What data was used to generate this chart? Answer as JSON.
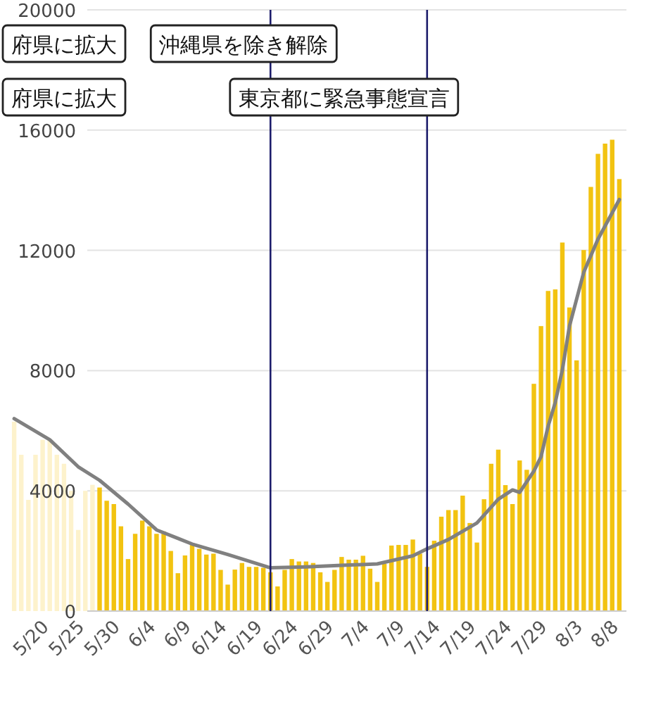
{
  "chart_data": {
    "type": "bar",
    "x": [
      "--05-15",
      "--05-16",
      "--05-17",
      "--05-18",
      "--05-19",
      "--05-20",
      "--05-21",
      "--05-22",
      "--05-23",
      "--05-24",
      "--05-25",
      "--05-26",
      "--05-27",
      "--05-28",
      "--05-29",
      "--05-30",
      "--05-31",
      "--06-01",
      "--06-02",
      "--06-03",
      "--06-04",
      "--06-05",
      "--06-06",
      "--06-07",
      "--06-08",
      "--06-09",
      "--06-10",
      "--06-11",
      "--06-12",
      "--06-13",
      "--06-14",
      "--06-15",
      "--06-16",
      "--06-17",
      "--06-18",
      "--06-19",
      "--06-20",
      "--06-21",
      "--06-22",
      "--06-23",
      "--06-24",
      "--06-25",
      "--06-26",
      "--06-27",
      "--06-28",
      "--06-29",
      "--06-30",
      "--07-01",
      "--07-02",
      "--07-03",
      "--07-04",
      "--07-05",
      "--07-06",
      "--07-07",
      "--07-08",
      "--07-09",
      "--07-10",
      "--07-11",
      "--07-12",
      "--07-13",
      "--07-14",
      "--07-15",
      "--07-16",
      "--07-17",
      "--07-18",
      "--07-19",
      "--07-20",
      "--07-21",
      "--07-22",
      "--07-23",
      "--07-24",
      "--07-25",
      "--07-26",
      "--07-27",
      "--07-28",
      "--07-29",
      "--07-30",
      "--07-31",
      "--08-01",
      "--08-02",
      "--08-03",
      "--08-04",
      "--08-05",
      "--08-06",
      "--08-07",
      "--08-08"
    ],
    "xlim": [
      "--05-14",
      "--08-09"
    ],
    "xticks": [
      {
        "value": "--05-20",
        "label": "5/20"
      },
      {
        "value": "--05-25",
        "label": "5/25"
      },
      {
        "value": "--05-30",
        "label": "5/30"
      },
      {
        "value": "--06-04",
        "label": "6/4"
      },
      {
        "value": "--06-09",
        "label": "6/9"
      },
      {
        "value": "--06-14",
        "label": "6/14"
      },
      {
        "value": "--06-19",
        "label": "6/19"
      },
      {
        "value": "--06-24",
        "label": "6/24"
      },
      {
        "value": "--06-29",
        "label": "6/29"
      },
      {
        "value": "--07-04",
        "label": "7/4"
      },
      {
        "value": "--07-09",
        "label": "7/9"
      },
      {
        "value": "--07-14",
        "label": "7/14"
      },
      {
        "value": "--07-19",
        "label": "7/19"
      },
      {
        "value": "--07-24",
        "label": "7/24"
      },
      {
        "value": "--07-29",
        "label": "7/29"
      },
      {
        "value": "--08-03",
        "label": "8/3"
      },
      {
        "value": "--08-08",
        "label": "8/8"
      }
    ],
    "ylim": [
      0,
      20000
    ],
    "yticks": [
      0,
      4000,
      8000,
      12000,
      16000,
      20000
    ],
    "grid": "y",
    "series": [
      {
        "values": [
          6300,
          5200,
          3700,
          5200,
          5700,
          5700,
          5200,
          4900,
          4000,
          2700,
          4000,
          4200,
          4110,
          3670,
          3560,
          2820,
          1730,
          2570,
          3010,
          2820,
          2570,
          2650,
          2000,
          1260,
          1850,
          2260,
          2070,
          1880,
          1910,
          1370,
          880,
          1380,
          1600,
          1470,
          1470,
          1440,
          1290,
          820,
          1370,
          1730,
          1650,
          1650,
          1600,
          1290,
          970,
          1370,
          1800,
          1710,
          1710,
          1840,
          1410,
          970,
          1570,
          2180,
          2200,
          2200,
          2380,
          1910,
          1470,
          2340,
          3140,
          3360,
          3360,
          3840,
          2930,
          2280,
          3720,
          4900,
          5370,
          4190,
          3560,
          5010,
          4700,
          7560,
          9480,
          10650,
          10700,
          12260,
          10100,
          8340,
          12010,
          14110,
          15210,
          15550,
          15680,
          14370
        ],
        "colors": [
          "#fdf2cc",
          "#fdf2cc",
          "#fdf2cc",
          "#fdf2cc",
          "#fdf2cc",
          "#fdf2cc",
          "#fdf2cc",
          "#fdf2cc",
          "#fdf2cc",
          "#fdf2cc",
          "#fdf2cc",
          "#fdf2cc",
          "#f2c311",
          "#f2c311",
          "#f2c311",
          "#f2c311",
          "#f2c311",
          "#f2c311",
          "#f2c311",
          "#f2c311",
          "#f2c311",
          "#f2c311",
          "#f2c311",
          "#f2c311",
          "#f2c311",
          "#f2c311",
          "#f2c311",
          "#f2c311",
          "#f2c311",
          "#f2c311",
          "#f2c311",
          "#f2c311",
          "#f2c311",
          "#f2c311",
          "#f2c311",
          "#f2c311",
          "#f2c311",
          "#f2c311",
          "#f2c311",
          "#f2c311",
          "#f2c311",
          "#f2c311",
          "#f2c311",
          "#f2c311",
          "#f2c311",
          "#f2c311",
          "#f2c311",
          "#f2c311",
          "#f2c311",
          "#f2c311",
          "#f2c311",
          "#f2c311",
          "#f2c311",
          "#f2c311",
          "#f2c311",
          "#f2c311",
          "#f2c311",
          "#f2c311",
          "#f2c311",
          "#f2c311",
          "#f2c311",
          "#f2c311",
          "#f2c311",
          "#f2c311",
          "#f2c311",
          "#f2c311",
          "#f2c311",
          "#f2c311",
          "#f2c311",
          "#f2c311",
          "#f2c311",
          "#f2c311",
          "#f2c311",
          "#f2c311",
          "#f2c311",
          "#f2c311",
          "#f2c311",
          "#f2c311",
          "#f2c311",
          "#f2c311",
          "#f2c311",
          "#f2c311",
          "#f2c311",
          "#f2c311",
          "#f2c311",
          "#f2c311"
        ]
      },
      {
        "type": "line",
        "color": "#808080",
        "x": [
          "--05-15",
          "--05-20",
          "--05-24",
          "--05-27",
          "--05-31",
          "--06-04",
          "--06-09",
          "--06-14",
          "--06-20",
          "--06-25",
          "--06-30",
          "--07-05",
          "--07-10",
          "--07-12",
          "--07-15",
          "--07-19",
          "--07-22",
          "--07-24",
          "--07-25",
          "--07-27",
          "--07-28",
          "--07-29",
          "--07-30",
          "--07-31",
          "--08-01",
          "--08-03",
          "--08-05",
          "--08-08"
        ],
        "values": [
          6400,
          5700,
          4800,
          4350,
          3560,
          2700,
          2230,
          1880,
          1440,
          1470,
          1520,
          1570,
          1840,
          2070,
          2380,
          2930,
          3720,
          4030,
          3950,
          4660,
          5130,
          6150,
          6940,
          8030,
          9480,
          11270,
          12370,
          13690
        ]
      }
    ],
    "ref_lines": [
      {
        "axis": "x",
        "value": "--06-20",
        "label": "沖縄県を除き解除",
        "color": "#1c1c6b"
      },
      {
        "axis": "x",
        "value": "--07-12",
        "label": "東京都に緊急事態宣言",
        "color": "#1c1c6b"
      }
    ],
    "annotations": [
      "府県に拡大",
      "府県に拡大"
    ]
  }
}
